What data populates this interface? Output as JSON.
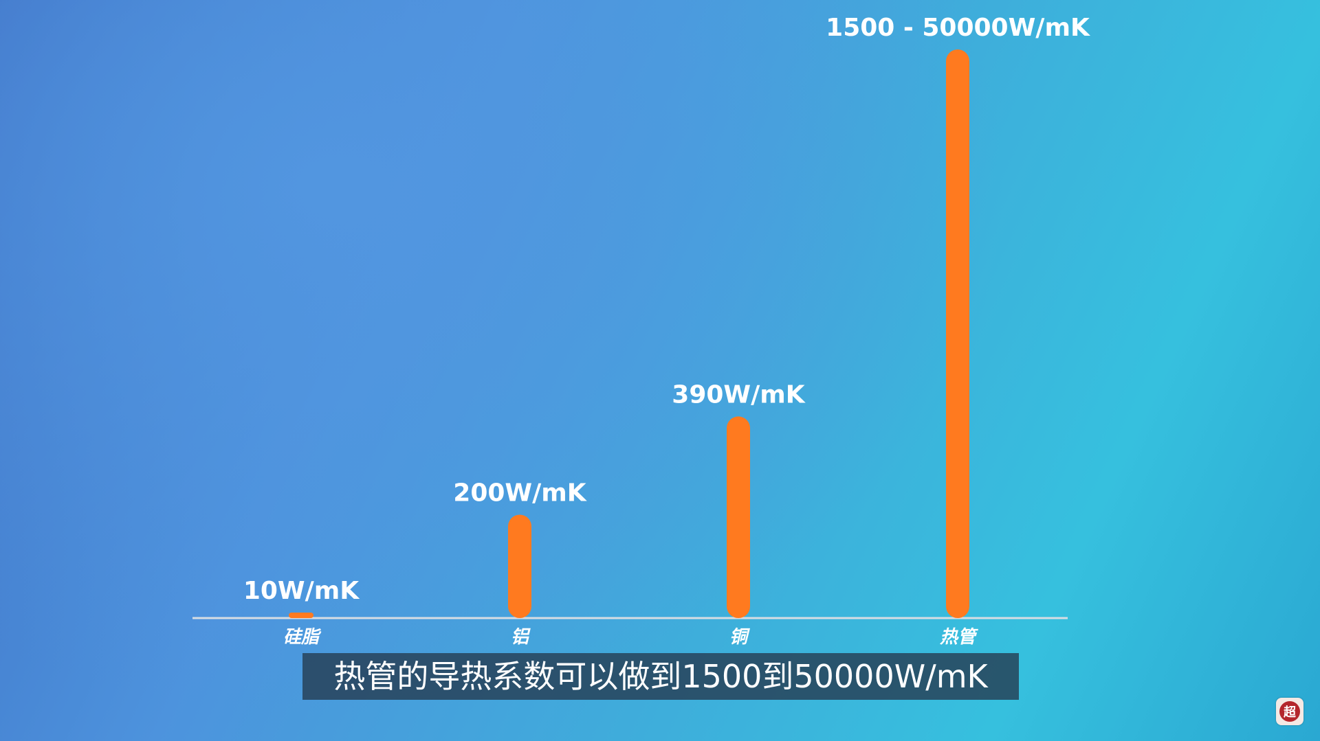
{
  "chart_data": {
    "type": "bar",
    "title": "",
    "xlabel": "",
    "ylabel": "",
    "categories": [
      "硅脂",
      "铝",
      "铜",
      "热管"
    ],
    "values": [
      10,
      200,
      390,
      1100
    ],
    "data_labels": [
      "10W/mK",
      "200W/mK",
      "390W/mK",
      "1500 - 50000W/mK"
    ],
    "ylim": [
      0,
      1100
    ],
    "grid": false,
    "legend": "none",
    "bar_color": "#ff7a1f",
    "axis_color": "#d7dde3"
  },
  "subtitle": {
    "text": "热管的导热系数可以做到1500到50000W/mK"
  },
  "watermark": {
    "glyph": "超",
    "icon": "channel-seal-icon"
  }
}
